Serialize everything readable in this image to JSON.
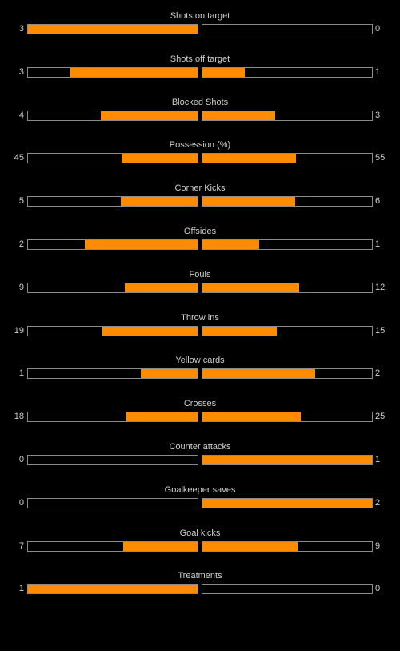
{
  "colors": {
    "background": "#000000",
    "bar_fill": "#ff8c00",
    "bar_border": "#8a8a8a",
    "text": "#cfcfcf"
  },
  "stats": [
    {
      "label": "Shots on target",
      "home": "3",
      "away": "0",
      "home_fill": 1.0,
      "away_fill": 0.0
    },
    {
      "label": "Shots off target",
      "home": "3",
      "away": "1",
      "home_fill": 0.75,
      "away_fill": 0.25
    },
    {
      "label": "Blocked Shots",
      "home": "4",
      "away": "3",
      "home_fill": 0.571,
      "away_fill": 0.429
    },
    {
      "label": "Possession (%)",
      "home": "45",
      "away": "55",
      "home_fill": 0.45,
      "away_fill": 0.55
    },
    {
      "label": "Corner Kicks",
      "home": "5",
      "away": "6",
      "home_fill": 0.455,
      "away_fill": 0.545
    },
    {
      "label": "Offsides",
      "home": "2",
      "away": "1",
      "home_fill": 0.667,
      "away_fill": 0.333
    },
    {
      "label": "Fouls",
      "home": "9",
      "away": "12",
      "home_fill": 0.429,
      "away_fill": 0.571
    },
    {
      "label": "Throw ins",
      "home": "19",
      "away": "15",
      "home_fill": 0.559,
      "away_fill": 0.441
    },
    {
      "label": "Yellow cards",
      "home": "1",
      "away": "2",
      "home_fill": 0.333,
      "away_fill": 0.667
    },
    {
      "label": "Crosses",
      "home": "18",
      "away": "25",
      "home_fill": 0.419,
      "away_fill": 0.581
    },
    {
      "label": "Counter attacks",
      "home": "0",
      "away": "1",
      "home_fill": 0.0,
      "away_fill": 1.0
    },
    {
      "label": "Goalkeeper saves",
      "home": "0",
      "away": "2",
      "home_fill": 0.0,
      "away_fill": 1.0
    },
    {
      "label": "Goal kicks",
      "home": "7",
      "away": "9",
      "home_fill": 0.438,
      "away_fill": 0.562
    },
    {
      "label": "Treatments",
      "home": "1",
      "away": "0",
      "home_fill": 1.0,
      "away_fill": 0.0
    }
  ]
}
